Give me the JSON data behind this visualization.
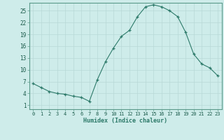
{
  "x": [
    0,
    1,
    2,
    3,
    4,
    5,
    6,
    7,
    8,
    9,
    10,
    11,
    12,
    13,
    14,
    15,
    16,
    17,
    18,
    19,
    20,
    21,
    22,
    23
  ],
  "y": [
    6.5,
    5.5,
    4.5,
    4.0,
    3.8,
    3.3,
    3.0,
    2.0,
    7.5,
    12.0,
    15.5,
    18.5,
    20.0,
    23.5,
    26.0,
    26.5,
    26.0,
    25.0,
    23.5,
    19.5,
    14.0,
    11.5,
    10.5,
    8.5
  ],
  "line_color": "#2d7a6a",
  "marker": "+",
  "marker_size": 3,
  "bg_color": "#ceecea",
  "grid_color_major": "#b8d8d6",
  "grid_color_minor": "#d4ecea",
  "xlabel": "Humidex (Indice chaleur)",
  "xlim": [
    -0.5,
    23.5
  ],
  "ylim": [
    0,
    27
  ],
  "yticks": [
    1,
    4,
    7,
    10,
    13,
    16,
    19,
    22,
    25
  ],
  "xticks": [
    0,
    1,
    2,
    3,
    4,
    5,
    6,
    7,
    8,
    9,
    10,
    11,
    12,
    13,
    14,
    15,
    16,
    17,
    18,
    19,
    20,
    21,
    22,
    23
  ]
}
